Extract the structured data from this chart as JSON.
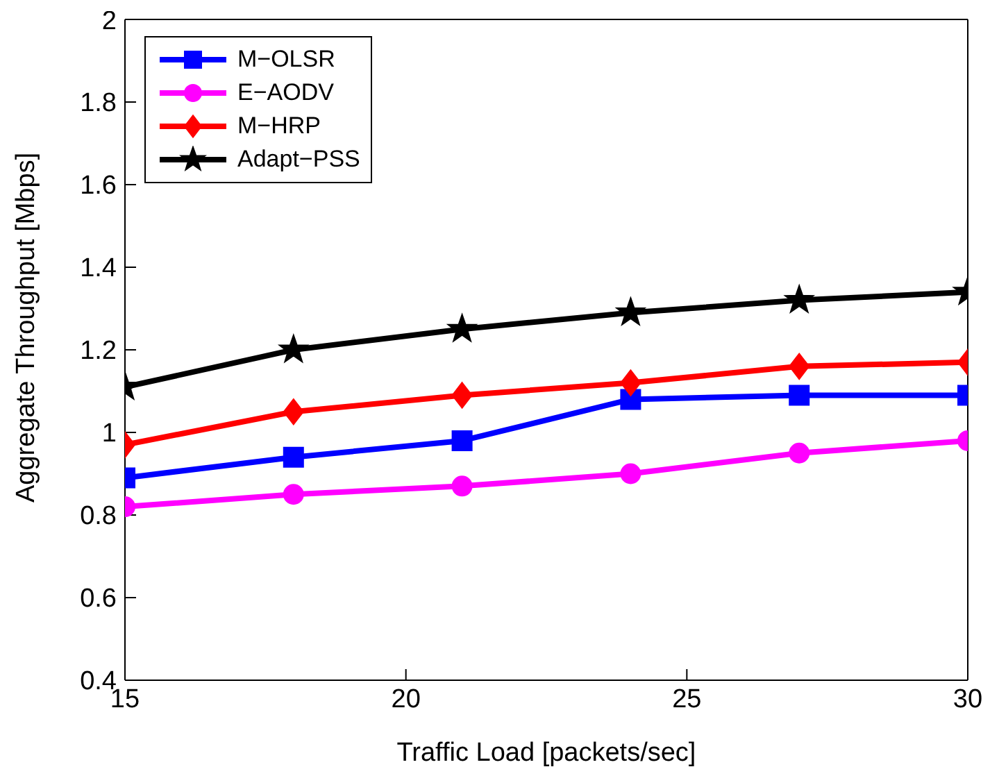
{
  "chart_data": {
    "type": "line",
    "xlabel": "Traffic Load [packets/sec]",
    "ylabel": "Aggregate Throughput [Mbps]",
    "x": [
      15,
      18,
      21,
      24,
      27,
      30
    ],
    "series": [
      {
        "name": "M−OLSR",
        "color": "#0000ff",
        "marker": "square",
        "values": [
          0.89,
          0.94,
          0.98,
          1.08,
          1.09,
          1.09
        ]
      },
      {
        "name": "E−AODV",
        "color": "#ff00ff",
        "marker": "circle",
        "values": [
          0.82,
          0.85,
          0.87,
          0.9,
          0.95,
          0.98
        ]
      },
      {
        "name": "M−HRP",
        "color": "#ff0000",
        "marker": "diamond",
        "values": [
          0.97,
          1.05,
          1.09,
          1.12,
          1.16,
          1.17
        ]
      },
      {
        "name": "Adapt−PSS",
        "color": "#000000",
        "marker": "star",
        "values": [
          1.11,
          1.2,
          1.25,
          1.29,
          1.32,
          1.34
        ]
      }
    ],
    "xlim": [
      15,
      30
    ],
    "xticks": [
      15,
      20,
      25,
      30
    ],
    "ylim": [
      0.4,
      2
    ],
    "yticks": [
      0.4,
      0.6,
      0.8,
      1,
      1.2,
      1.4,
      1.6,
      1.8,
      2
    ],
    "grid": false,
    "legend": "top left",
    "line_style": "solid"
  }
}
